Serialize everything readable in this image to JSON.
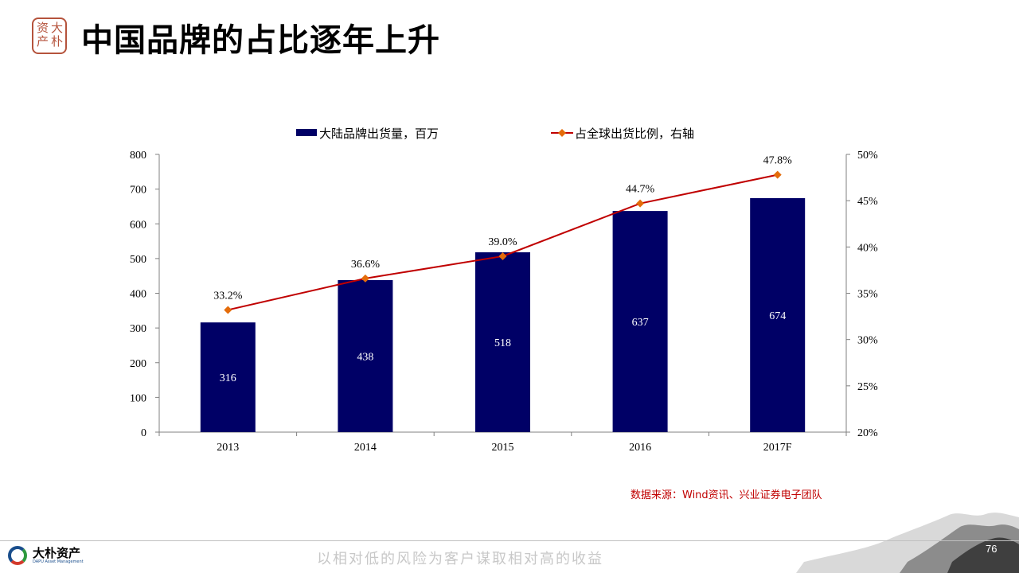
{
  "slide": {
    "title": "中国品牌的占比逐年上升",
    "seal_chars": [
      "大",
      "朴",
      "资",
      "产"
    ],
    "source": "数据来源：Wind资讯、兴业证券电子团队",
    "footer_company_cn": "大朴资产",
    "footer_company_en": "DAPU Asset Management",
    "slogan": "以相对低的风险为客户谋取相对高的收益",
    "page_number": "76"
  },
  "colors": {
    "bar": "#000066",
    "line": "#c00000",
    "marker": "#e46c0a",
    "axis": "#808080"
  },
  "chart_data": {
    "type": "bar",
    "categories": [
      "2013",
      "2014",
      "2015",
      "2016",
      "2017F"
    ],
    "series": [
      {
        "name": "大陆品牌出货量，百万",
        "type": "bar",
        "axis": "left",
        "values": [
          316,
          438,
          518,
          637,
          674
        ],
        "labels": [
          "316",
          "438",
          "518",
          "637",
          "674"
        ]
      },
      {
        "name": "占全球出货比例，右轴",
        "type": "line",
        "axis": "right",
        "values": [
          33.2,
          36.6,
          39.0,
          44.7,
          47.8
        ],
        "labels": [
          "33.2%",
          "36.6%",
          "39.0%",
          "44.7%",
          "47.8%"
        ]
      }
    ],
    "y_left": {
      "min": 0,
      "max": 800,
      "ticks": [
        "0",
        "100",
        "200",
        "300",
        "400",
        "500",
        "600",
        "700",
        "800"
      ]
    },
    "y_right": {
      "min": 20,
      "max": 50,
      "ticks": [
        "20%",
        "25%",
        "30%",
        "35%",
        "40%",
        "45%",
        "50%"
      ]
    },
    "legend_position": "top",
    "grid": false
  }
}
